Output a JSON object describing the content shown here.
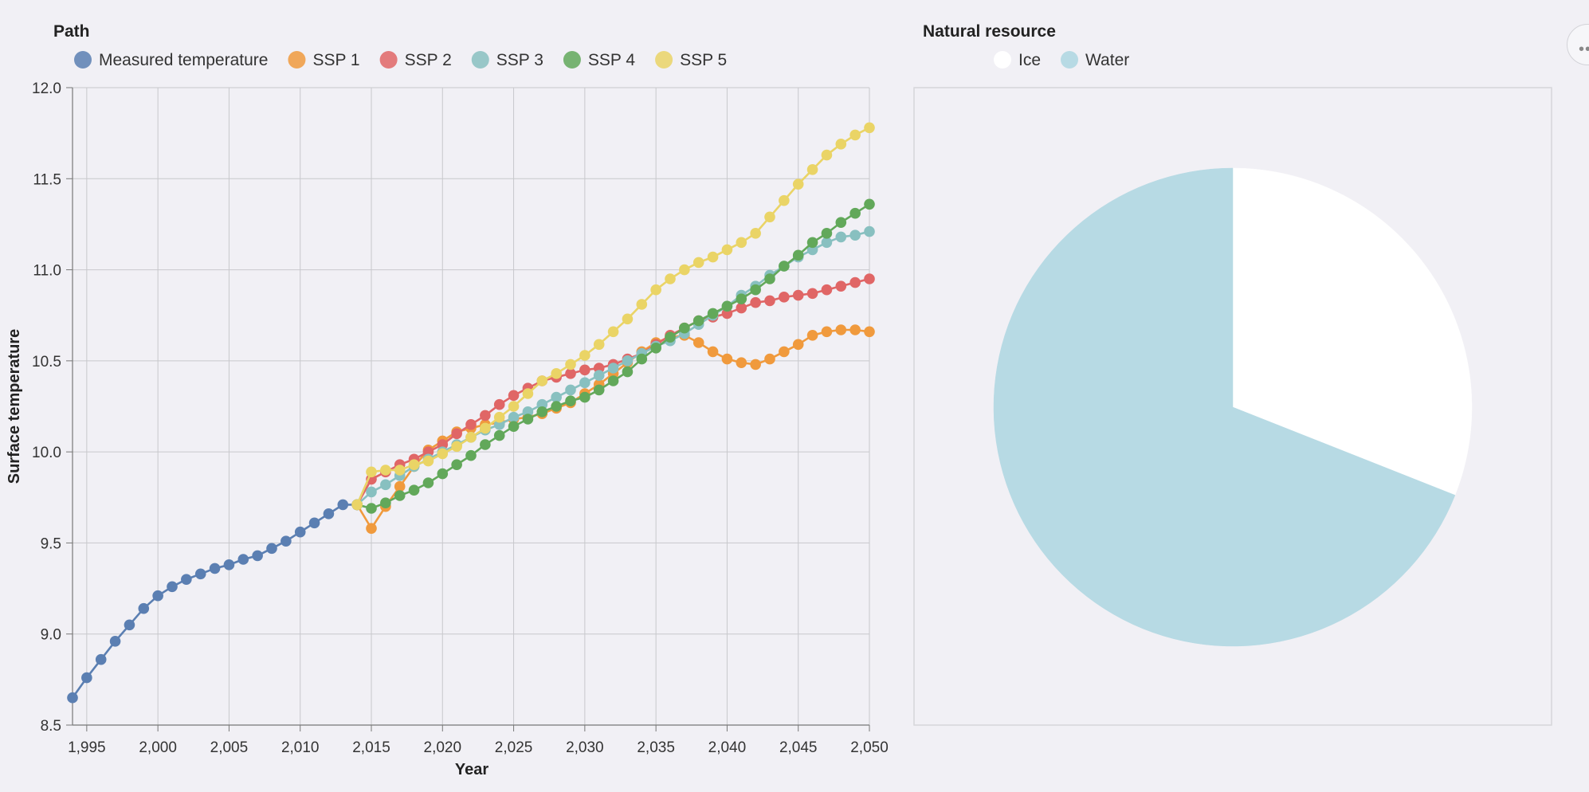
{
  "chart_data": [
    {
      "type": "line",
      "legend_title": "Path",
      "legend_placement": "top",
      "xlabel": "Year",
      "ylabel": "Surface temperature",
      "xlim": [
        1994,
        2050
      ],
      "ylim": [
        8.5,
        12.0
      ],
      "x_ticks": [
        1995,
        2000,
        2005,
        2010,
        2015,
        2020,
        2025,
        2030,
        2035,
        2040,
        2045,
        2050
      ],
      "x_tick_labels": [
        "1,995",
        "2,000",
        "2,005",
        "2,010",
        "2,015",
        "2,020",
        "2,025",
        "2,030",
        "2,035",
        "2,040",
        "2,045",
        "2,050"
      ],
      "y_ticks": [
        8.5,
        9.0,
        9.5,
        10.0,
        10.5,
        11.0,
        11.5,
        12.0
      ],
      "y_tick_labels": [
        "8.5",
        "9.0",
        "9.5",
        "10.0",
        "10.5",
        "11.0",
        "11.5",
        "12.0"
      ],
      "grid": true,
      "series": [
        {
          "name": "Measured temperature",
          "color": "#5b7fb2",
          "x": [
            1994,
            1995,
            1996,
            1997,
            1998,
            1999,
            2000,
            2001,
            2002,
            2003,
            2004,
            2005,
            2006,
            2007,
            2008,
            2009,
            2010,
            2011,
            2012,
            2013,
            2014
          ],
          "y": [
            8.65,
            8.76,
            8.86,
            8.96,
            9.05,
            9.14,
            9.21,
            9.26,
            9.3,
            9.33,
            9.36,
            9.38,
            9.41,
            9.43,
            9.47,
            9.51,
            9.56,
            9.61,
            9.66,
            9.71,
            9.71
          ]
        },
        {
          "name": "SSP 1",
          "color": "#f09a3d",
          "x": [
            2014,
            2015,
            2016,
            2017,
            2018,
            2019,
            2020,
            2021,
            2022,
            2023,
            2024,
            2025,
            2026,
            2027,
            2028,
            2029,
            2030,
            2031,
            2032,
            2033,
            2034,
            2035,
            2036,
            2037,
            2038,
            2039,
            2040,
            2041,
            2042,
            2043,
            2044,
            2045,
            2046,
            2047,
            2048,
            2049,
            2050
          ],
          "y": [
            9.71,
            9.58,
            9.7,
            9.81,
            9.92,
            10.01,
            10.06,
            10.11,
            10.13,
            10.15,
            10.16,
            10.18,
            10.19,
            10.21,
            10.24,
            10.27,
            10.32,
            10.37,
            10.43,
            10.49,
            10.55,
            10.6,
            10.63,
            10.64,
            10.6,
            10.55,
            10.51,
            10.49,
            10.48,
            10.51,
            10.55,
            10.59,
            10.64,
            10.66,
            10.67,
            10.67,
            10.66
          ]
        },
        {
          "name": "SSP 2",
          "color": "#e06666",
          "x": [
            2014,
            2015,
            2016,
            2017,
            2018,
            2019,
            2020,
            2021,
            2022,
            2023,
            2024,
            2025,
            2026,
            2027,
            2028,
            2029,
            2030,
            2031,
            2032,
            2033,
            2034,
            2035,
            2036,
            2037,
            2038,
            2039,
            2040,
            2041,
            2042,
            2043,
            2044,
            2045,
            2046,
            2047,
            2048,
            2049,
            2050
          ],
          "y": [
            9.71,
            9.85,
            9.89,
            9.93,
            9.96,
            10.0,
            10.04,
            10.1,
            10.15,
            10.2,
            10.26,
            10.31,
            10.35,
            10.39,
            10.41,
            10.43,
            10.45,
            10.46,
            10.48,
            10.51,
            10.54,
            10.59,
            10.64,
            10.68,
            10.72,
            10.74,
            10.76,
            10.79,
            10.82,
            10.83,
            10.85,
            10.86,
            10.87,
            10.89,
            10.91,
            10.93,
            10.95
          ]
        },
        {
          "name": "SSP 3",
          "color": "#88c0c0",
          "x": [
            2014,
            2015,
            2016,
            2017,
            2018,
            2019,
            2020,
            2021,
            2022,
            2023,
            2024,
            2025,
            2026,
            2027,
            2028,
            2029,
            2030,
            2031,
            2032,
            2033,
            2034,
            2035,
            2036,
            2037,
            2038,
            2039,
            2040,
            2041,
            2042,
            2043,
            2044,
            2045,
            2046,
            2047,
            2048,
            2049,
            2050
          ],
          "y": [
            9.71,
            9.78,
            9.82,
            9.87,
            9.92,
            9.96,
            10.0,
            10.04,
            10.08,
            10.12,
            10.15,
            10.19,
            10.22,
            10.26,
            10.3,
            10.34,
            10.38,
            10.42,
            10.46,
            10.5,
            10.54,
            10.58,
            10.61,
            10.65,
            10.7,
            10.75,
            10.8,
            10.86,
            10.91,
            10.97,
            11.02,
            11.07,
            11.11,
            11.15,
            11.18,
            11.19,
            11.21
          ]
        },
        {
          "name": "SSP 4",
          "color": "#62a85a",
          "x": [
            2014,
            2015,
            2016,
            2017,
            2018,
            2019,
            2020,
            2021,
            2022,
            2023,
            2024,
            2025,
            2026,
            2027,
            2028,
            2029,
            2030,
            2031,
            2032,
            2033,
            2034,
            2035,
            2036,
            2037,
            2038,
            2039,
            2040,
            2041,
            2042,
            2043,
            2044,
            2045,
            2046,
            2047,
            2048,
            2049,
            2050
          ],
          "y": [
            9.71,
            9.69,
            9.72,
            9.76,
            9.79,
            9.83,
            9.88,
            9.93,
            9.98,
            10.04,
            10.09,
            10.14,
            10.18,
            10.22,
            10.25,
            10.28,
            10.3,
            10.34,
            10.39,
            10.44,
            10.51,
            10.57,
            10.63,
            10.68,
            10.72,
            10.76,
            10.8,
            10.84,
            10.89,
            10.95,
            11.02,
            11.08,
            11.15,
            11.2,
            11.26,
            11.31,
            11.36
          ]
        },
        {
          "name": "SSP 5",
          "color": "#ead466",
          "x": [
            2014,
            2015,
            2016,
            2017,
            2018,
            2019,
            2020,
            2021,
            2022,
            2023,
            2024,
            2025,
            2026,
            2027,
            2028,
            2029,
            2030,
            2031,
            2032,
            2033,
            2034,
            2035,
            2036,
            2037,
            2038,
            2039,
            2040,
            2041,
            2042,
            2043,
            2044,
            2045,
            2046,
            2047,
            2048,
            2049,
            2050
          ],
          "y": [
            9.71,
            9.89,
            9.9,
            9.9,
            9.93,
            9.95,
            9.99,
            10.03,
            10.08,
            10.13,
            10.19,
            10.25,
            10.32,
            10.39,
            10.43,
            10.48,
            10.53,
            10.59,
            10.66,
            10.73,
            10.81,
            10.89,
            10.95,
            11.0,
            11.04,
            11.07,
            11.11,
            11.15,
            11.2,
            11.29,
            11.38,
            11.47,
            11.55,
            11.63,
            11.69,
            11.74,
            11.78
          ]
        }
      ]
    },
    {
      "type": "pie",
      "legend_title": "Natural resource",
      "legend_placement": "top",
      "categories": [
        "Ice",
        "Water"
      ],
      "values": [
        31,
        69
      ],
      "colors": [
        "#ffffff",
        "#b7dae4"
      ]
    }
  ]
}
